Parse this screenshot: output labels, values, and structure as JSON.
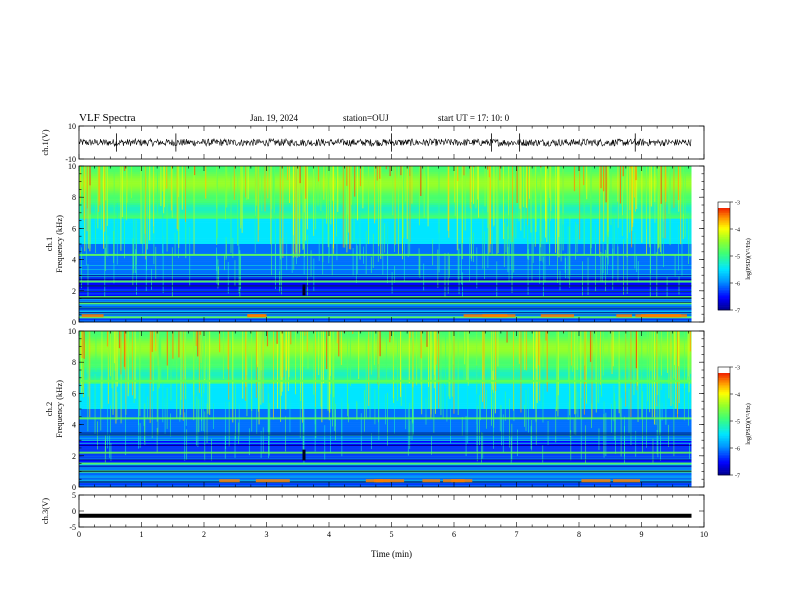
{
  "header": {
    "title": "VLF Spectra",
    "date": "Jan. 19, 2024",
    "station": "station=OUJ",
    "start": "start  UT =  17: 10: 0"
  },
  "colorbar": {
    "label": "log(PSD)(V²/Hz)",
    "ticks": [
      "-3",
      "-4",
      "-5",
      "-6",
      "-7"
    ],
    "stops": [
      "#000090",
      "#0000ff",
      "#00a0ff",
      "#00ffff",
      "#40ff80",
      "#a0ff20",
      "#ffff00",
      "#ff9000",
      "#ff0000",
      "#b00000",
      "#ffffff"
    ]
  },
  "chart_data": [
    {
      "type": "line",
      "panel": "ch1-waveform",
      "ylabel": "ch.1(V)",
      "ylim": [
        -10,
        10
      ],
      "yticks": [
        "10",
        "-10"
      ],
      "xlim": [
        0,
        10
      ],
      "mean_level": 0,
      "noise_amplitude": 1,
      "spike_times_min": [
        0.6,
        1.55,
        5.0,
        6.6,
        7.05,
        8.9
      ]
    },
    {
      "type": "heatmap",
      "panel": "ch1-spectrogram",
      "ylabel": "ch.1\nFrequency (kHz)",
      "xlim": [
        0,
        10
      ],
      "ylim": [
        0,
        10
      ],
      "yticks": [
        "0",
        "2",
        "4",
        "6",
        "8",
        "10"
      ],
      "zlabel": "log(PSD)(V²/Hz)",
      "zlim": [
        -7,
        -3
      ],
      "data_end_min": 9.8,
      "band_lines_kHz": [
        4.3,
        2.6,
        1.6,
        1.2,
        0.3
      ],
      "dark_trace": {
        "time_min": 3.6,
        "freq_kHz": [
          1.7,
          2.4
        ]
      }
    },
    {
      "type": "heatmap",
      "panel": "ch2-spectrogram",
      "ylabel": "ch.2\nFrequency (kHz)",
      "xlim": [
        0,
        10
      ],
      "ylim": [
        0,
        10
      ],
      "yticks": [
        "0",
        "2",
        "4",
        "6",
        "8",
        "10"
      ],
      "zlabel": "log(PSD)(V²/Hz)",
      "zlim": [
        -7,
        -3
      ],
      "data_end_min": 9.8,
      "band_lines_kHz": [
        6.8,
        4.4,
        2.2,
        1.5,
        1.0
      ],
      "dark_trace": {
        "time_min": 3.6,
        "freq_kHz": [
          1.7,
          2.4
        ]
      }
    },
    {
      "type": "line",
      "panel": "ch3-waveform",
      "ylabel": "ch.3(V)",
      "ylim": [
        -5,
        5
      ],
      "yticks": [
        "5",
        "0",
        "-5"
      ],
      "xlim": [
        0,
        10
      ],
      "level": -1.5,
      "xlabel": "Time (min)",
      "xticks": [
        "0",
        "1",
        "2",
        "3",
        "4",
        "5",
        "6",
        "7",
        "8",
        "9",
        "10"
      ]
    }
  ]
}
